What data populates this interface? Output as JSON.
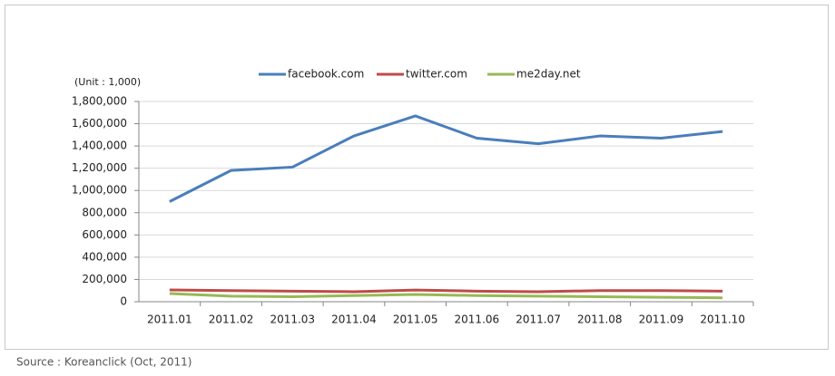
{
  "chart_data": {
    "type": "line",
    "unit_label": "(Unit : 1,000)",
    "source": "Source : Koreanclick (Oct, 2011)",
    "categories": [
      "2011.01",
      "2011.02",
      "2011.03",
      "2011.04",
      "2011.05",
      "2011.06",
      "2011.07",
      "2011.08",
      "2011.09",
      "2011.10"
    ],
    "series": [
      {
        "name": "facebook.com",
        "color": "#4a7ebb",
        "values": [
          900000,
          1180000,
          1210000,
          1490000,
          1670000,
          1470000,
          1420000,
          1490000,
          1470000,
          1530000
        ]
      },
      {
        "name": "twitter.com",
        "color": "#be4b48",
        "values": [
          106000,
          100000,
          95000,
          90000,
          105000,
          95000,
          90000,
          100000,
          100000,
          95000
        ]
      },
      {
        "name": "me2day.net",
        "color": "#98b954",
        "values": [
          73000,
          50000,
          45000,
          55000,
          65000,
          55000,
          50000,
          45000,
          40000,
          35000
        ]
      }
    ],
    "ylim": [
      0,
      1800000
    ],
    "yticks": [
      0,
      {
        "value": 200000,
        "label": "200,000"
      },
      {
        "value": 400000,
        "label": "400,000"
      },
      {
        "value": 600000,
        "label": "600,000"
      },
      {
        "value": 800000,
        "label": "800,000"
      },
      {
        "value": 1000000,
        "label": "1,000,000"
      },
      {
        "value": 1200000,
        "label": "1,200,000"
      },
      {
        "value": 1400000,
        "label": "1,400,000"
      },
      {
        "value": 1600000,
        "label": "1,600,000"
      },
      {
        "value": 1800000,
        "label": "1,800,000"
      }
    ],
    "grid": true,
    "legend": "top"
  }
}
